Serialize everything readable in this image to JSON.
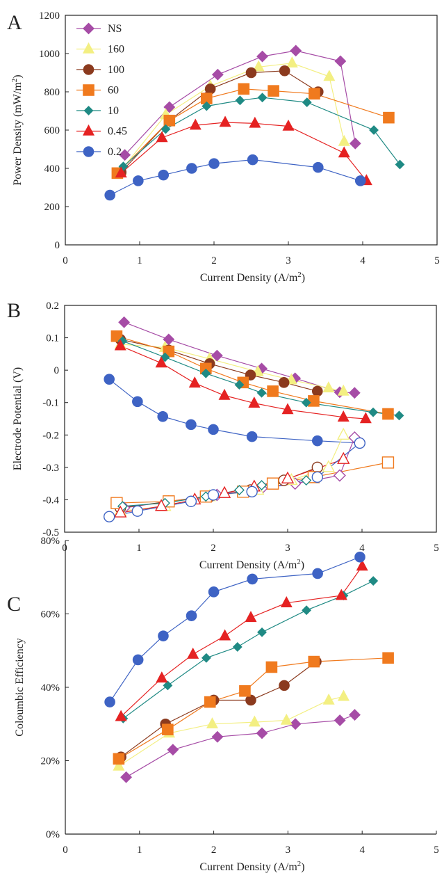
{
  "colors": {
    "NS": "#a64ca6",
    "160": "#f3ef82",
    "100": "#8b3a1e",
    "60": "#f07a1e",
    "10": "#1f8a84",
    "0.45": "#e52222",
    "0.2": "#3e63c4"
  },
  "markers": {
    "NS": "diamond",
    "160": "triangle",
    "100": "circle",
    "60": "square",
    "10": "diamond-small",
    "0.45": "triangle",
    "0.2": "circle"
  },
  "legend": [
    "NS",
    "160",
    "100",
    "60",
    "10",
    "0.45",
    "0.2"
  ],
  "chart_data": [
    {
      "panel": "A",
      "type": "line",
      "xlabel": "Current Density (A/m2)",
      "ylabel": "Power Density (mW/m2)",
      "xlim": [
        0,
        5
      ],
      "ylim": [
        0,
        1200
      ],
      "xticks": [
        0,
        1,
        2,
        3,
        4,
        5
      ],
      "yticks": [
        0,
        200,
        400,
        600,
        800,
        1000,
        1200
      ],
      "legend_placement": "top-left",
      "series": [
        {
          "name": "NS",
          "points": [
            [
              0.8,
              470
            ],
            [
              1.4,
              720
            ],
            [
              2.05,
              890
            ],
            [
              2.65,
              985
            ],
            [
              3.1,
              1015
            ],
            [
              3.7,
              960
            ],
            [
              3.9,
              530
            ]
          ]
        },
        {
          "name": "160",
          "points": [
            [
              0.75,
              390
            ],
            [
              1.35,
              680
            ],
            [
              1.95,
              830
            ],
            [
              2.6,
              930
            ],
            [
              3.05,
              950
            ],
            [
              3.55,
              880
            ],
            [
              3.75,
              540
            ]
          ]
        },
        {
          "name": "100",
          "points": [
            [
              0.75,
              380
            ],
            [
              1.4,
              650
            ],
            [
              1.95,
              815
            ],
            [
              2.5,
              900
            ],
            [
              2.95,
              910
            ],
            [
              3.4,
              800
            ]
          ]
        },
        {
          "name": "60",
          "points": [
            [
              0.7,
              375
            ],
            [
              1.4,
              650
            ],
            [
              1.9,
              765
            ],
            [
              2.4,
              815
            ],
            [
              2.8,
              805
            ],
            [
              3.35,
              790
            ],
            [
              4.35,
              665
            ]
          ]
        },
        {
          "name": "10",
          "points": [
            [
              0.78,
              410
            ],
            [
              1.35,
              605
            ],
            [
              1.9,
              725
            ],
            [
              2.35,
              755
            ],
            [
              2.65,
              770
            ],
            [
              3.25,
              745
            ],
            [
              4.15,
              600
            ],
            [
              4.5,
              420
            ]
          ]
        },
        {
          "name": "0.45",
          "points": [
            [
              0.75,
              375
            ],
            [
              1.3,
              560
            ],
            [
              1.75,
              625
            ],
            [
              2.15,
              640
            ],
            [
              2.55,
              635
            ],
            [
              3.0,
              620
            ],
            [
              3.75,
              480
            ],
            [
              4.05,
              335
            ]
          ]
        },
        {
          "name": "0.2",
          "points": [
            [
              0.6,
              260
            ],
            [
              0.98,
              335
            ],
            [
              1.32,
              365
            ],
            [
              1.7,
              400
            ],
            [
              2.0,
              425
            ],
            [
              2.52,
              445
            ],
            [
              3.4,
              405
            ],
            [
              3.97,
              335
            ]
          ]
        }
      ]
    },
    {
      "panel": "B",
      "type": "scatter",
      "xlabel": "Current Density (A/m2)",
      "ylabel": "Electrode Potential (V)",
      "xlim": [
        0,
        5
      ],
      "ylim": [
        -0.5,
        0.2
      ],
      "xticks": [
        0,
        1,
        2,
        3,
        4,
        5
      ],
      "yticks": [
        -0.5,
        -0.4,
        -0.3,
        -0.2,
        -0.1,
        0,
        0.1,
        0.2
      ],
      "series": [
        {
          "name": "NS",
          "points": [
            [
              0.8,
              0.148
            ],
            [
              1.4,
              0.095
            ],
            [
              2.05,
              0.045
            ],
            [
              2.65,
              0.005
            ],
            [
              3.1,
              -0.025
            ],
            [
              3.7,
              -0.068
            ],
            [
              3.9,
              -0.07
            ]
          ]
        },
        {
          "name": "160",
          "points": [
            [
              0.75,
              0.08
            ],
            [
              1.35,
              0.07
            ],
            [
              1.95,
              0.035
            ],
            [
              2.6,
              -0.005
            ],
            [
              3.05,
              -0.03
            ],
            [
              3.55,
              -0.055
            ],
            [
              3.75,
              -0.065
            ]
          ]
        },
        {
          "name": "100",
          "points": [
            [
              0.75,
              0.095
            ],
            [
              1.4,
              0.062
            ],
            [
              1.95,
              0.02
            ],
            [
              2.5,
              -0.015
            ],
            [
              2.95,
              -0.038
            ],
            [
              3.4,
              -0.065
            ]
          ]
        },
        {
          "name": "60",
          "points": [
            [
              0.7,
              0.105
            ],
            [
              1.4,
              0.058
            ],
            [
              1.9,
              0.005
            ],
            [
              2.4,
              -0.038
            ],
            [
              2.8,
              -0.065
            ],
            [
              3.35,
              -0.095
            ],
            [
              4.35,
              -0.135
            ]
          ]
        },
        {
          "name": "10",
          "points": [
            [
              0.78,
              0.09
            ],
            [
              1.35,
              0.04
            ],
            [
              1.9,
              -0.01
            ],
            [
              2.35,
              -0.045
            ],
            [
              2.65,
              -0.07
            ],
            [
              3.25,
              -0.1
            ],
            [
              4.15,
              -0.13
            ],
            [
              4.5,
              -0.14
            ]
          ]
        },
        {
          "name": "0.45",
          "points": [
            [
              0.75,
              0.075
            ],
            [
              1.3,
              0.022
            ],
            [
              1.75,
              -0.04
            ],
            [
              2.15,
              -0.078
            ],
            [
              2.55,
              -0.102
            ],
            [
              3.0,
              -0.122
            ],
            [
              3.75,
              -0.145
            ],
            [
              4.05,
              -0.15
            ]
          ]
        },
        {
          "name": "0.2",
          "points": [
            [
              0.6,
              -0.028
            ],
            [
              0.98,
              -0.097
            ],
            [
              1.32,
              -0.143
            ],
            [
              1.7,
              -0.168
            ],
            [
              2.0,
              -0.183
            ],
            [
              2.52,
              -0.205
            ],
            [
              3.4,
              -0.218
            ],
            [
              3.97,
              -0.225
            ]
          ]
        },
        {
          "name": "NS",
          "electrode": "anode",
          "points": [
            [
              0.8,
              -0.425
            ],
            [
              1.4,
              -0.405
            ],
            [
              2.05,
              -0.385
            ],
            [
              2.65,
              -0.365
            ],
            [
              3.1,
              -0.35
            ],
            [
              3.7,
              -0.325
            ],
            [
              3.9,
              -0.208
            ]
          ]
        },
        {
          "name": "160",
          "electrode": "anode",
          "points": [
            [
              0.75,
              -0.435
            ],
            [
              1.35,
              -0.42
            ],
            [
              1.95,
              -0.39
            ],
            [
              2.6,
              -0.37
            ],
            [
              3.05,
              -0.34
            ],
            [
              3.55,
              -0.3
            ],
            [
              3.75,
              -0.2
            ]
          ]
        },
        {
          "name": "100",
          "electrode": "anode",
          "points": [
            [
              0.75,
              -0.425
            ],
            [
              1.4,
              -0.405
            ],
            [
              1.95,
              -0.39
            ],
            [
              2.5,
              -0.37
            ],
            [
              2.95,
              -0.34
            ],
            [
              3.4,
              -0.3
            ]
          ]
        },
        {
          "name": "60",
          "electrode": "anode",
          "points": [
            [
              0.7,
              -0.41
            ],
            [
              1.4,
              -0.405
            ],
            [
              1.9,
              -0.39
            ],
            [
              2.4,
              -0.375
            ],
            [
              2.8,
              -0.35
            ],
            [
              3.35,
              -0.33
            ],
            [
              4.35,
              -0.285
            ]
          ]
        },
        {
          "name": "10",
          "electrode": "anode",
          "points": [
            [
              0.78,
              -0.42
            ],
            [
              1.35,
              -0.41
            ],
            [
              1.9,
              -0.39
            ],
            [
              2.35,
              -0.37
            ],
            [
              2.65,
              -0.355
            ],
            [
              3.25,
              -0.34
            ]
          ]
        },
        {
          "name": "0.45",
          "electrode": "anode",
          "points": [
            [
              0.75,
              -0.44
            ],
            [
              1.3,
              -0.42
            ],
            [
              1.75,
              -0.4
            ],
            [
              2.15,
              -0.38
            ],
            [
              2.55,
              -0.36
            ],
            [
              3.0,
              -0.335
            ],
            [
              3.75,
              -0.275
            ]
          ]
        },
        {
          "name": "0.2",
          "electrode": "anode",
          "points": [
            [
              0.6,
              -0.452
            ],
            [
              0.98,
              -0.435
            ],
            [
              1.7,
              -0.405
            ],
            [
              2.0,
              -0.385
            ],
            [
              2.52,
              -0.375
            ],
            [
              3.4,
              -0.33
            ],
            [
              3.97,
              -0.225
            ]
          ]
        }
      ]
    },
    {
      "panel": "C",
      "type": "line",
      "xlabel": "Current Density (A/m2)",
      "ylabel": "Coloumbic Efficiency",
      "xlim": [
        0,
        5
      ],
      "ylim": [
        0,
        80
      ],
      "xticks": [
        0,
        1,
        2,
        3,
        4,
        5
      ],
      "yticks": [
        0,
        20,
        40,
        60,
        80
      ],
      "ytick_labels": [
        "0%",
        "20%",
        "40%",
        "60%",
        "80%"
      ],
      "series": [
        {
          "name": "NS",
          "points": [
            [
              0.82,
              15.5
            ],
            [
              1.45,
              23
            ],
            [
              2.05,
              26.5
            ],
            [
              2.65,
              27.5
            ],
            [
              3.1,
              30
            ],
            [
              3.7,
              31
            ],
            [
              3.9,
              32.5
            ]
          ]
        },
        {
          "name": "160",
          "points": [
            [
              0.72,
              18.5
            ],
            [
              1.4,
              27.5
            ],
            [
              1.98,
              30
            ],
            [
              2.55,
              30.5
            ],
            [
              2.98,
              31
            ],
            [
              3.55,
              36.5
            ],
            [
              3.75,
              37.5
            ]
          ]
        },
        {
          "name": "100",
          "points": [
            [
              0.75,
              21
            ],
            [
              1.35,
              30
            ],
            [
              2.0,
              36.5
            ],
            [
              2.5,
              36.5
            ],
            [
              2.95,
              40.5
            ],
            [
              3.38,
              47
            ]
          ]
        },
        {
          "name": "60",
          "points": [
            [
              0.72,
              20.5
            ],
            [
              1.38,
              28.5
            ],
            [
              1.95,
              36
            ],
            [
              2.42,
              39
            ],
            [
              2.78,
              45.5
            ],
            [
              3.35,
              47
            ],
            [
              4.35,
              48
            ]
          ]
        },
        {
          "name": "10",
          "points": [
            [
              0.78,
              31.5
            ],
            [
              1.38,
              40.5
            ],
            [
              1.9,
              48
            ],
            [
              2.32,
              51
            ],
            [
              2.65,
              55
            ],
            [
              3.25,
              61
            ],
            [
              3.75,
              65
            ],
            [
              4.15,
              69
            ]
          ]
        },
        {
          "name": "0.45",
          "points": [
            [
              0.75,
              32
            ],
            [
              1.3,
              42.5
            ],
            [
              1.72,
              49
            ],
            [
              2.15,
              54
            ],
            [
              2.5,
              59
            ],
            [
              2.98,
              63
            ],
            [
              3.72,
              65
            ],
            [
              4.0,
              73
            ]
          ]
        },
        {
          "name": "0.2",
          "points": [
            [
              0.6,
              36
            ],
            [
              0.98,
              47.5
            ],
            [
              1.32,
              54
            ],
            [
              1.7,
              59.5
            ],
            [
              2.0,
              66
            ],
            [
              2.52,
              69.5
            ],
            [
              3.4,
              71
            ],
            [
              3.97,
              75.5
            ]
          ]
        }
      ]
    }
  ]
}
